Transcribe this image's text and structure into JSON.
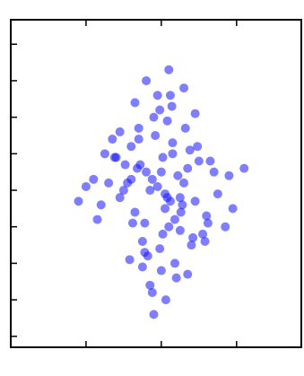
{
  "chart_data": {
    "type": "scatter",
    "x": [
      -0.05,
      0.12,
      -0.2,
      0.3,
      -0.35,
      0.02,
      0.18,
      -0.12,
      0.25,
      -0.28,
      0.08,
      -0.4,
      0.42,
      -0.15,
      0.05,
      -0.08,
      0.35,
      -0.22,
      0.15,
      -0.02,
      0.28,
      -0.45,
      0.5,
      -0.3,
      0.1,
      -0.18,
      0.22,
      -0.55,
      0.6,
      -0.1,
      0.0,
      0.38,
      -0.32,
      0.14,
      -0.25,
      0.45,
      -0.6,
      0.2,
      -0.05,
      0.32,
      -0.7,
      0.55,
      -0.42,
      0.7,
      -0.12,
      0.08,
      -0.35,
      0.26,
      -0.5,
      0.4,
      -0.8,
      0.65,
      -0.2,
      0.85,
      -0.9,
      0.06,
      -0.15,
      0.3,
      -0.65,
      0.75,
      -0.02,
      0.18,
      -0.38,
      0.48,
      -1.0,
      0.95,
      -0.3,
      0.1,
      0.02,
      -0.1,
      -0.75,
      0.58,
      0.35,
      -0.48,
      0.12,
      -0.22,
      0.9,
      -0.85,
      0.0,
      0.25,
      -0.55,
      0.45,
      -1.1,
      1.1,
      -0.25,
      0.15,
      0.62,
      -0.62,
      0.05,
      -0.4
    ],
    "series": [
      {
        "color": "#1414ff",
        "values": [
          0.1,
          -0.3,
          0.5,
          0.2,
          -0.6,
          0.9,
          -0.8,
          0.3,
          -1.1,
          0.7,
          -0.2,
          1.2,
          -1.3,
          0.0,
          -0.5,
          1.5,
          0.6,
          -0.9,
          1.0,
          -1.6,
          -0.4,
          0.2,
          0.8,
          1.4,
          -1.0,
          -1.8,
          0.4,
          -0.2,
          -0.7,
          2.0,
          -2.2,
          1.1,
          0.6,
          2.3,
          -1.4,
          -0.3,
          0.9,
          -2.4,
          2.6,
          1.7,
          0.2,
          -1.2,
          -1.9,
          0.5,
          -2.8,
          1.9,
          2.4,
          -0.6,
          0.0,
          -1.5,
          -0.4,
          0.8,
          3.0,
          -1.0,
          0.3,
          -3.0,
          -2.6,
          2.8,
          1.4,
          -0.1,
          2.2,
          -2.0,
          -0.9,
          1.2,
          0.1,
          -0.5,
          1.7,
          3.3,
          -1.2,
          -3.4,
          1.0,
          -1.4,
          -2.3,
          0.7,
          2.6,
          -1.7,
          0.4,
          -0.8,
          0.5,
          -0.2,
          1.6,
          2.1,
          -0.3,
          0.6,
          -2.1,
          1.3,
          -0.9,
          0.9,
          -0.1,
          0.3
        ]
      }
    ],
    "xlim": [
      -2,
      1.86
    ],
    "ylim": [
      -4.3,
      4.67
    ],
    "xticks": [
      -1,
      0,
      1
    ],
    "yticks": [
      -4,
      -3,
      -2,
      -1,
      0,
      1,
      2,
      3,
      4
    ]
  }
}
